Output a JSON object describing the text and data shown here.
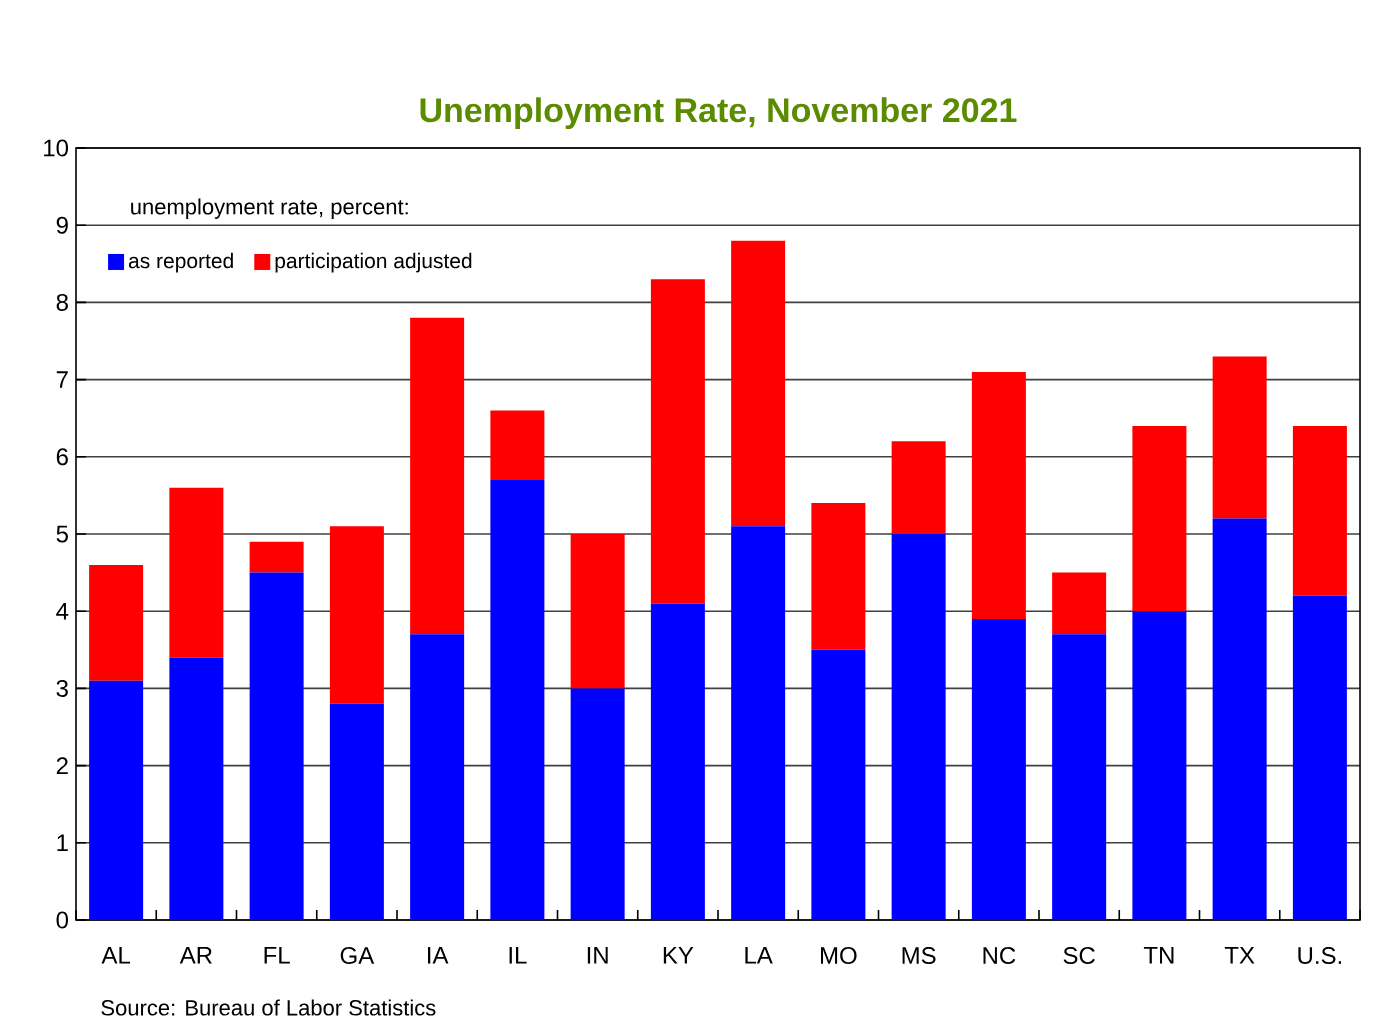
{
  "chart_data": {
    "type": "bar",
    "stacked": true,
    "title": "Unemployment Rate, November 2021",
    "legend_title": "unemployment rate, percent:",
    "categories": [
      "AL",
      "AR",
      "FL",
      "GA",
      "IA",
      "IL",
      "IN",
      "KY",
      "LA",
      "MO",
      "MS",
      "NC",
      "SC",
      "TN",
      "TX",
      "U.S."
    ],
    "series": [
      {
        "name": "as reported",
        "color": "#0000ff",
        "values": [
          3.1,
          3.4,
          4.5,
          2.8,
          3.7,
          5.7,
          3.0,
          4.1,
          5.1,
          3.5,
          5.0,
          3.9,
          3.7,
          4.0,
          5.2,
          4.2
        ]
      },
      {
        "name": "participation adjusted",
        "color": "#ff0000",
        "values": [
          1.5,
          2.2,
          0.4,
          2.3,
          4.1,
          0.9,
          2.0,
          4.2,
          3.7,
          1.9,
          1.2,
          3.2,
          0.8,
          2.4,
          2.1,
          2.2
        ]
      }
    ],
    "ylim": [
      0,
      10
    ],
    "yticks": [
      0,
      1,
      2,
      3,
      4,
      5,
      6,
      7,
      8,
      9,
      10
    ],
    "grid": "y",
    "legend": "top left",
    "annotations": [
      "Source: Bureau of Labor Statistics"
    ]
  }
}
